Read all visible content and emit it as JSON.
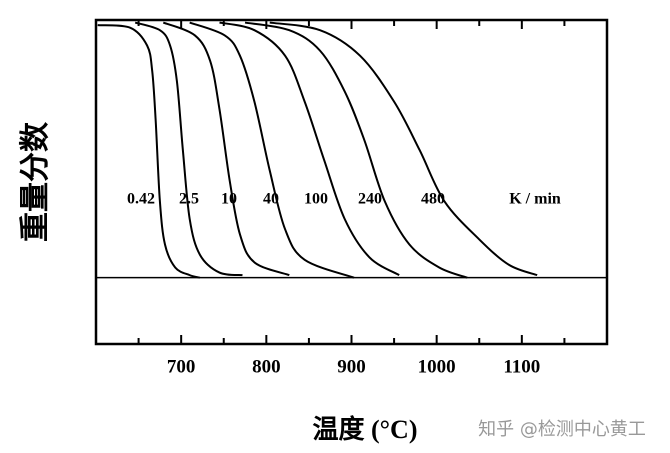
{
  "chart_data": {
    "type": "line",
    "xlabel": "温度 (°C)",
    "ylabel": "重量分数",
    "unit_label": "K / min",
    "watermark": "知乎 @检测中心黄工",
    "xlim": [
      600,
      1200
    ],
    "ylim": [
      -26,
      101
    ],
    "xticks": [
      700,
      800,
      900,
      1000,
      1100
    ],
    "xminorticks": [
      650,
      750,
      850,
      950,
      1050,
      1150
    ],
    "hline": 0,
    "color": "#000000",
    "series": [
      {
        "name": "0.42",
        "x": [
          602,
          640,
          660,
          666,
          670,
          675,
          681,
          693,
          710,
          722
        ],
        "values": [
          99,
          98,
          91,
          81,
          62,
          30,
          13,
          4,
          1,
          0
        ]
      },
      {
        "name": "2.5",
        "x": [
          646,
          675,
          687,
          695,
          702,
          710,
          722,
          745,
          772
        ],
        "values": [
          100,
          97,
          91,
          77,
          50,
          23,
          9,
          2,
          1
        ]
      },
      {
        "name": "10",
        "x": [
          679,
          716,
          734,
          745,
          757,
          769,
          786,
          827
        ],
        "values": [
          100,
          95,
          85,
          66,
          38,
          17,
          6,
          1
        ]
      },
      {
        "name": "40",
        "x": [
          710,
          751,
          769,
          786,
          804,
          822,
          845,
          903
        ],
        "values": [
          100,
          95,
          87,
          69,
          42,
          19,
          7,
          0
        ]
      },
      {
        "name": "100",
        "x": [
          745,
          786,
          822,
          845,
          868,
          892,
          921,
          956
        ],
        "values": [
          100,
          97,
          87,
          69,
          46,
          23,
          8,
          1
        ]
      },
      {
        "name": "240",
        "x": [
          775,
          827,
          863,
          892,
          915,
          939,
          968,
          1003,
          1036
        ],
        "values": [
          100,
          97,
          89,
          73,
          54,
          30,
          13,
          4,
          0
        ]
      },
      {
        "name": "480",
        "x": [
          804,
          863,
          910,
          950,
          980,
          1009,
          1050,
          1085,
          1118
        ],
        "values": [
          100,
          97,
          87,
          69,
          50,
          30,
          15,
          5,
          1
        ]
      }
    ]
  }
}
